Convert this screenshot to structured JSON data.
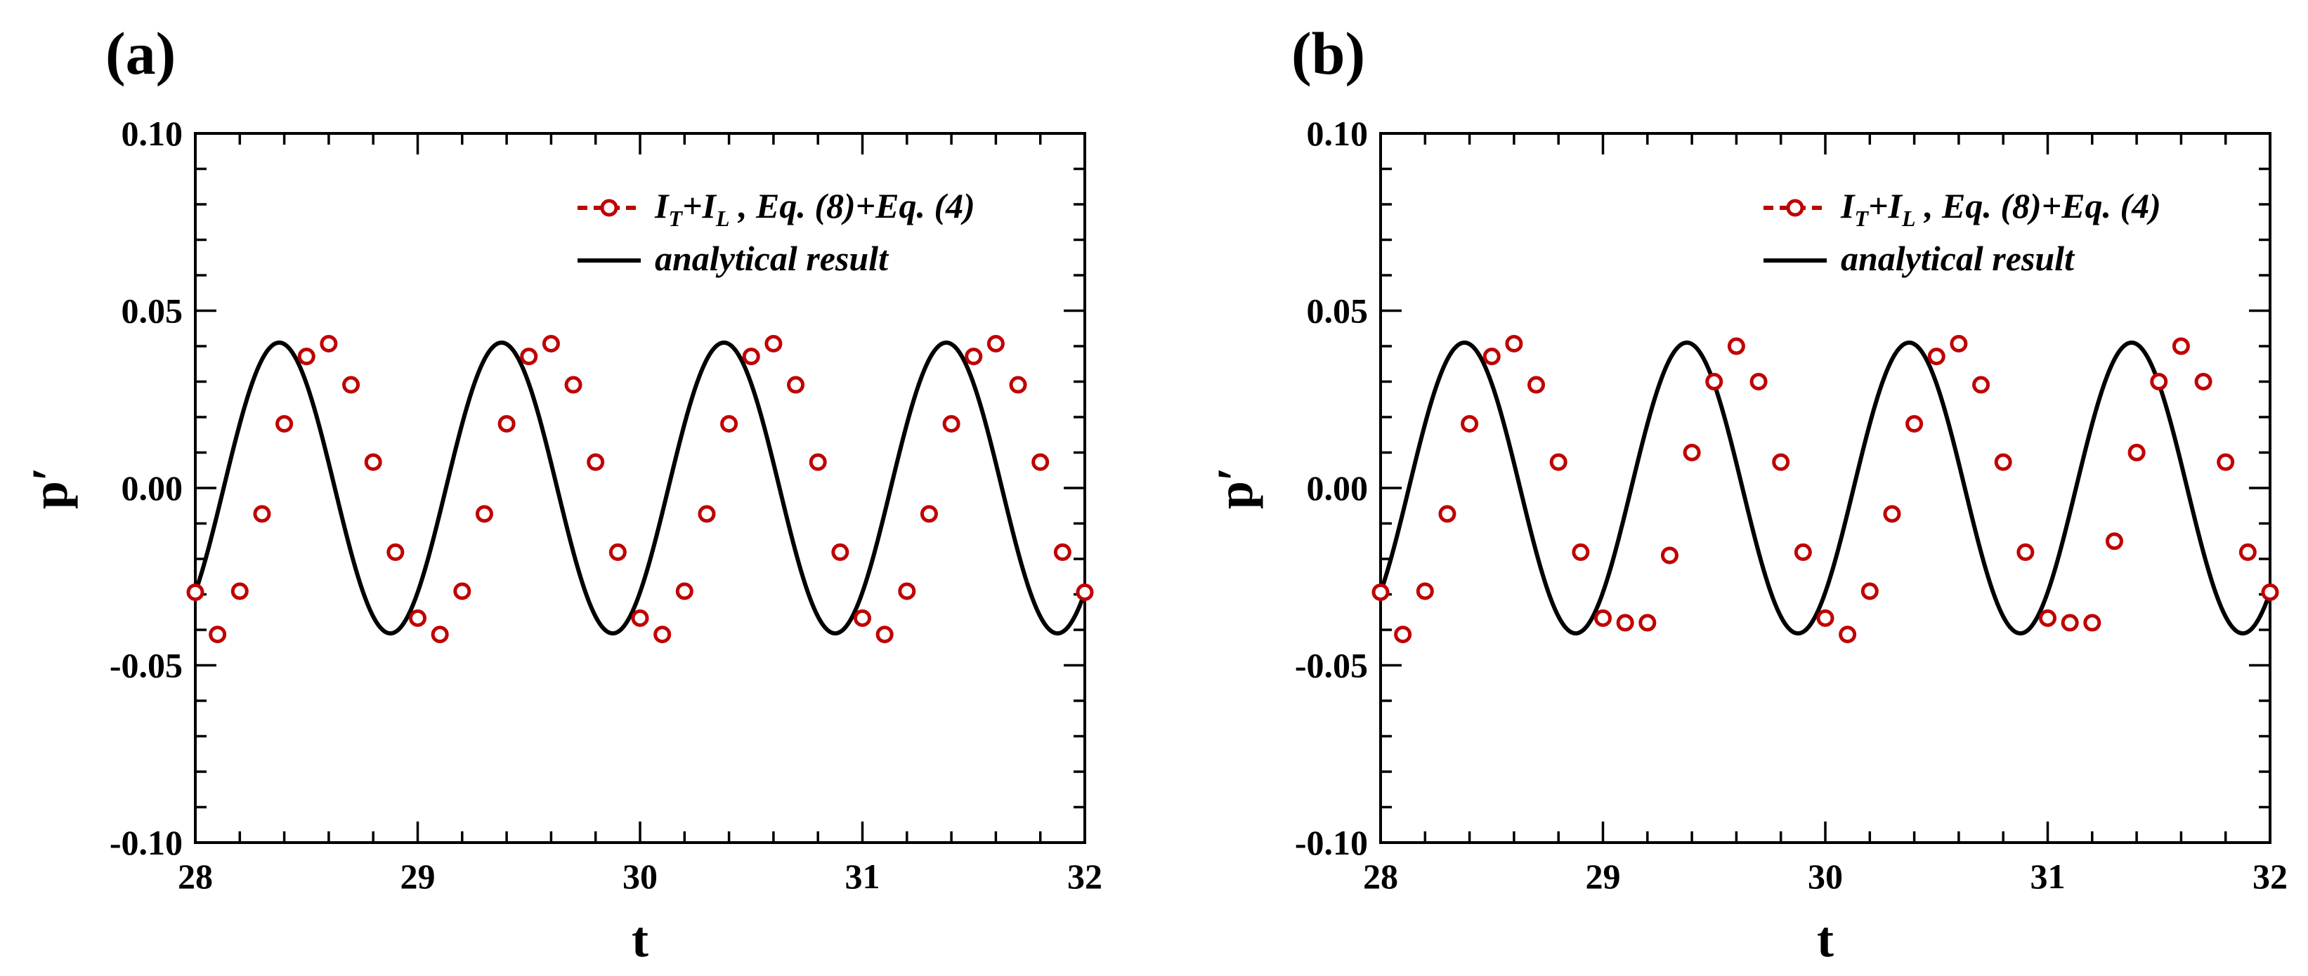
{
  "chart_data": [
    {
      "type": "line",
      "panel_label": "(a)",
      "xlabel": "t",
      "ylabel": "p′",
      "xlim": [
        28,
        32
      ],
      "ylim": [
        -0.1,
        0.1
      ],
      "x_ticks": [
        "28",
        "29",
        "30",
        "31",
        "32"
      ],
      "y_ticks": [
        "-0.10",
        "-0.05",
        "0.00",
        "0.05",
        "0.10"
      ],
      "legend_placement": "top-right",
      "legend": [
        {
          "name": "I_T+I_L , Eq. (8)+Eq. (4)",
          "style": "red dash-dot line with open circles"
        },
        {
          "name": "analytical result",
          "style": "solid black line"
        }
      ],
      "series": [
        {
          "name": "analytical result",
          "function": "0.041*sin(2*pi*(t-28)-0.8)",
          "amplitude": 0.041,
          "period": 1.0
        },
        {
          "name": "I_T+I_L , Eq. (8)+Eq. (4)",
          "x": [
            28.0,
            28.1,
            28.2,
            28.3,
            28.4,
            28.5,
            28.6,
            28.7,
            28.8,
            28.9,
            29.0,
            29.1,
            29.2,
            29.3,
            29.4,
            29.5,
            29.6,
            29.7,
            29.8,
            29.9,
            30.0,
            30.1,
            30.2,
            30.3,
            30.4,
            30.5,
            30.6,
            30.7,
            30.8,
            30.9,
            31.0,
            31.1,
            31.2,
            31.3,
            31.4,
            31.5,
            31.6,
            31.7,
            31.8,
            31.9,
            32.0
          ],
          "y": [
            -0.0294,
            -0.0413,
            -0.0291,
            -0.0073,
            0.0181,
            0.0371,
            0.0407,
            0.0291,
            0.0073,
            -0.0181,
            -0.0367,
            -0.0413,
            -0.0291,
            -0.0073,
            0.0181,
            0.0371,
            0.0407,
            0.0291,
            0.0073,
            -0.0181,
            -0.0367,
            -0.0413,
            -0.0291,
            -0.0073,
            0.0181,
            0.0371,
            0.0407,
            0.0291,
            0.0073,
            -0.0181,
            -0.0367,
            -0.0413,
            -0.0291,
            -0.0073,
            0.0181,
            0.0371,
            0.0407,
            0.0291,
            0.0073,
            -0.0181,
            -0.0294
          ]
        }
      ]
    },
    {
      "type": "line",
      "panel_label": "(b)",
      "xlabel": "t",
      "ylabel": "p′",
      "xlim": [
        28,
        32
      ],
      "ylim": [
        -0.1,
        0.1
      ],
      "x_ticks": [
        "28",
        "29",
        "30",
        "31",
        "32"
      ],
      "y_ticks": [
        "-0.10",
        "-0.05",
        "0.00",
        "0.05",
        "0.10"
      ],
      "legend_placement": "top-right",
      "legend": [
        {
          "name": "I_T+I_L , Eq. (8)+Eq. (4)",
          "style": "red dash-dot line with open circles"
        },
        {
          "name": "analytical result",
          "style": "solid black line"
        }
      ],
      "series": [
        {
          "name": "analytical result",
          "function": "0.041*sin(2*pi*(t-28)-0.8)",
          "amplitude": 0.041,
          "period": 1.0
        },
        {
          "name": "I_T+I_L , Eq. (8)+Eq. (4)",
          "x": [
            28.0,
            28.1,
            28.2,
            28.3,
            28.4,
            28.5,
            28.6,
            28.7,
            28.8,
            28.9,
            29.0,
            29.1,
            29.2,
            29.3,
            29.4,
            29.5,
            29.6,
            29.7,
            29.8,
            29.9,
            30.0,
            30.1,
            30.2,
            30.3,
            30.4,
            30.5,
            30.6,
            30.7,
            30.8,
            30.9,
            31.0,
            31.1,
            31.2,
            31.3,
            31.4,
            31.5,
            31.6,
            31.7,
            31.8,
            31.9,
            32.0
          ],
          "y": [
            -0.0294,
            -0.0413,
            -0.0291,
            -0.0073,
            0.0181,
            0.0371,
            0.0407,
            0.0291,
            0.0073,
            -0.0181,
            -0.0367,
            -0.038,
            -0.038,
            -0.019,
            0.01,
            0.03,
            0.04,
            0.03,
            0.0073,
            -0.0181,
            -0.0367,
            -0.0413,
            -0.0291,
            -0.0073,
            0.0181,
            0.0371,
            0.0407,
            0.0291,
            0.0073,
            -0.0181,
            -0.0367,
            -0.038,
            -0.038,
            -0.015,
            0.01,
            0.03,
            0.04,
            0.03,
            0.0073,
            -0.0181,
            -0.0294
          ]
        }
      ]
    }
  ],
  "colors": {
    "numerical": "#c00000",
    "analytical": "#000000"
  }
}
